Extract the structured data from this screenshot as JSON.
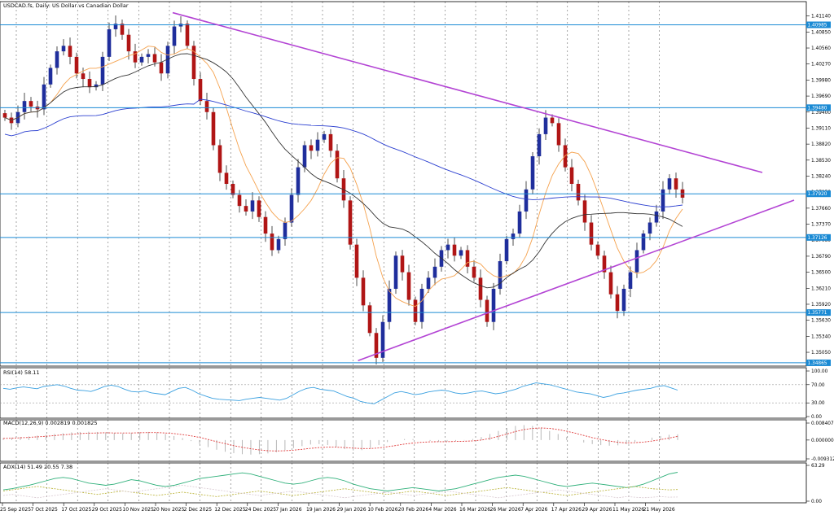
{
  "header": {
    "title": "USDCAD.fs, Daily:  US Dollar vs Canadian Dollar"
  },
  "colors": {
    "bull": "#1f2e9c",
    "bear": "#b01515",
    "ma_fast": "#f5a24e",
    "ma_mid": "#333333",
    "ma_slow": "#2b3fd0",
    "trendline": "#b344d4",
    "hline": "#1a8ad4",
    "rsi": "#3aa0e0",
    "macd_hist": "#b8b8b8",
    "macd_signal": "#e03c3c",
    "adx": "#2fb07a",
    "di_plus": "#b8b030",
    "di_minus": "#d8c8d0"
  },
  "chart_data": [
    {
      "type": "candlestick",
      "title": "USDCAD.fs, Daily:  US Dollar vs Canadian Dollar",
      "ylim": [
        1.348,
        1.414
      ],
      "y_ticks": [
        "1.41140",
        "1.40850",
        "1.40560",
        "1.40270",
        "1.39980",
        "1.39690",
        "1.39400",
        "1.39110",
        "1.38820",
        "1.38530",
        "1.38240",
        "1.37950",
        "1.37660",
        "1.37370",
        "1.37080",
        "1.36790",
        "1.36500",
        "1.36210",
        "1.35920",
        "1.35630",
        "1.35340",
        "1.35050"
      ],
      "x_ticks": [
        "25 Sep 2025",
        "7 Oct 2025",
        "17 Oct 2025",
        "29 Oct 2025",
        "10 Nov 2025",
        "20 Nov 2025",
        "2 Dec 2025",
        "12 Dec 2025",
        "24 Dec 2025",
        "7 Jan 2026",
        "19 Jan 2026",
        "29 Jan 2026",
        "10 Feb 2026",
        "20 Feb 2026",
        "4 Mar 2026",
        "16 Mar 2026",
        "26 Mar 2026",
        "7 Apr 2026",
        "17 Apr 2026",
        "29 Apr 2026",
        "11 May 2026",
        "21 May 2026"
      ],
      "hlines": [
        {
          "value": 1.4098,
          "label": "1.40985"
        },
        {
          "value": 1.3948,
          "label": "1.39480"
        },
        {
          "value": 1.3792,
          "label": "1.37920"
        },
        {
          "value": 1.3713,
          "label": "1.37126"
        },
        {
          "value": 1.3577,
          "label": "1.35771"
        },
        {
          "value": 1.3486,
          "label": "1.34865"
        }
      ],
      "trendlines": [
        {
          "from": [
            "20 Nov 2025",
            1.412
          ],
          "to": [
            "21 May 2026",
            1.3875
          ]
        },
        {
          "from": [
            "29 Jan 2026",
            1.349
          ],
          "to": [
            "21 May 2026",
            1.3715
          ]
        }
      ],
      "moving_averages": [
        "fast",
        "mid",
        "slow"
      ],
      "closes": [
        1.393,
        1.392,
        1.394,
        1.396,
        1.395,
        1.3945,
        1.399,
        1.402,
        1.405,
        1.406,
        1.404,
        1.401,
        1.4,
        1.3985,
        1.399,
        1.404,
        1.409,
        1.41,
        1.408,
        1.405,
        1.403,
        1.404,
        1.4045,
        1.403,
        1.401,
        1.406,
        1.4095,
        1.41,
        1.406,
        1.4,
        1.396,
        1.394,
        1.388,
        1.383,
        1.381,
        1.379,
        1.377,
        1.376,
        1.378,
        1.375,
        1.372,
        1.369,
        1.371,
        1.374,
        1.379,
        1.384,
        1.388,
        1.387,
        1.389,
        1.39,
        1.387,
        1.382,
        1.378,
        1.37,
        1.364,
        1.359,
        1.354,
        1.3495,
        1.356,
        1.362,
        1.368,
        1.365,
        1.36,
        1.356,
        1.362,
        1.364,
        1.366,
        1.369,
        1.37,
        1.368,
        1.369,
        1.366,
        1.364,
        1.36,
        1.356,
        1.362,
        1.367,
        1.371,
        1.372,
        1.376,
        1.38,
        1.386,
        1.39,
        1.393,
        1.392,
        1.388,
        1.384,
        1.381,
        1.378,
        1.374,
        1.37,
        1.368,
        1.365,
        1.361,
        1.358,
        1.362,
        1.365,
        1.369,
        1.372,
        1.374,
        1.376,
        1.38,
        1.382,
        1.38,
        1.3785
      ]
    },
    {
      "type": "line",
      "title": "RSI(14) 58.11",
      "ylim": [
        0,
        100
      ],
      "y_ticks": [
        "100.00",
        "70.00",
        "30.00",
        "0.00"
      ],
      "levels": [
        70,
        30
      ],
      "series": [
        {
          "values": [
            62,
            60,
            63,
            65,
            63,
            61,
            66,
            68,
            70,
            67,
            62,
            58,
            57,
            55,
            60,
            66,
            69,
            66,
            60,
            55,
            54,
            56,
            52,
            50,
            48,
            55,
            62,
            64,
            58,
            50,
            45,
            40,
            38,
            37,
            36,
            35,
            38,
            40,
            42,
            40,
            38,
            36,
            40,
            48,
            56,
            62,
            64,
            60,
            58,
            56,
            50,
            44,
            40,
            33,
            30,
            28,
            36,
            44,
            52,
            55,
            52,
            48,
            50,
            54,
            56,
            58,
            56,
            52,
            50,
            52,
            55,
            56,
            53,
            50,
            52,
            56,
            60,
            66,
            70,
            74,
            72,
            70,
            66,
            62,
            58,
            54,
            52,
            50,
            46,
            42,
            45,
            50,
            52,
            55,
            58,
            60,
            62,
            66,
            68,
            63,
            58
          ]
        }
      ]
    },
    {
      "type": "bar",
      "title": "MACD(12,26,9) 0.002819 0.001825",
      "ylim": [
        -0.009312,
        0.008407
      ],
      "y_ticks": [
        "0.008407",
        "0.000000",
        "-0.009312"
      ],
      "series": [
        {
          "name": "macd",
          "values": [
            0.001,
            0.0012,
            0.0015,
            0.0018,
            0.0022,
            0.0026,
            0.003,
            0.0034,
            0.0038,
            0.004,
            0.0041,
            0.004,
            0.0038,
            0.0035,
            0.0033,
            0.0035,
            0.0038,
            0.004,
            0.0037,
            0.003,
            0.002,
            0.001,
            -0.0005,
            -0.002,
            -0.0035,
            -0.0048,
            -0.0058,
            -0.0065,
            -0.007,
            -0.0072,
            -0.007,
            -0.0066,
            -0.006,
            -0.005,
            -0.004,
            -0.003,
            -0.0022,
            -0.002,
            -0.0025,
            -0.0035,
            -0.0045,
            -0.0052,
            -0.005,
            -0.004,
            -0.0025,
            -0.001,
            0.0,
            0.0005,
            0.0005,
            0.0,
            -0.0005,
            -0.0008,
            -0.0008,
            -0.0005,
            -0.0002,
            0.0005,
            0.0015,
            0.003,
            0.0045,
            0.006,
            0.007,
            0.0074,
            0.007,
            0.006,
            0.0045,
            0.003,
            0.0015,
            0.0,
            -0.0012,
            -0.002,
            -0.0025,
            -0.0028,
            -0.0026,
            -0.002,
            -0.001,
            0.0,
            0.0012,
            0.002,
            0.0026,
            0.0028
          ]
        },
        {
          "name": "signal",
          "values": [
            0.0008,
            0.0009,
            0.0011,
            0.0013,
            0.0016,
            0.0019,
            0.0022,
            0.0026,
            0.0029,
            0.0032,
            0.0034,
            0.0035,
            0.0036,
            0.0035,
            0.0035,
            0.0035,
            0.0036,
            0.0037,
            0.0037,
            0.0035,
            0.0032,
            0.0027,
            0.0021,
            0.0013,
            0.0003,
            -0.0008,
            -0.0018,
            -0.0028,
            -0.0036,
            -0.0043,
            -0.0049,
            -0.0053,
            -0.0054,
            -0.0053,
            -0.005,
            -0.0046,
            -0.0041,
            -0.0037,
            -0.0035,
            -0.0035,
            -0.0037,
            -0.004,
            -0.0042,
            -0.0042,
            -0.0039,
            -0.0033,
            -0.0027,
            -0.002,
            -0.0015,
            -0.0011,
            -0.0009,
            -0.0008,
            -0.0008,
            -0.0007,
            -0.0006,
            -0.0004,
            0.0,
            0.0008,
            0.0018,
            0.003,
            0.0042,
            0.0052,
            0.0058,
            0.006,
            0.0058,
            0.0052,
            0.0044,
            0.0034,
            0.0023,
            0.0012,
            0.0003,
            -0.0005,
            -0.0011,
            -0.0014,
            -0.0013,
            -0.001,
            -0.0005,
            0.0002,
            0.001,
            0.0018
          ]
        }
      ]
    },
    {
      "type": "line",
      "title": "ADX(14) 51.49 20.55 7.38",
      "ylim": [
        0,
        63.29
      ],
      "y_ticks": [
        "63.29",
        "0.00"
      ],
      "series": [
        {
          "name": "ADX",
          "values": [
            20,
            22,
            25,
            28,
            32,
            36,
            40,
            42,
            40,
            36,
            32,
            30,
            28,
            30,
            34,
            38,
            36,
            32,
            28,
            26,
            28,
            32,
            36,
            40,
            42,
            44,
            46,
            48,
            50,
            48,
            44,
            40,
            36,
            32,
            30,
            32,
            36,
            40,
            42,
            40,
            36,
            30,
            26,
            22,
            20,
            18,
            20,
            22,
            24,
            22,
            20,
            18,
            20,
            22,
            26,
            30,
            34,
            38,
            42,
            44,
            46,
            44,
            40,
            36,
            32,
            28,
            26,
            28,
            30,
            32,
            30,
            28,
            26,
            24,
            26,
            30,
            36,
            42,
            48,
            51
          ]
        },
        {
          "name": "+DI",
          "values": [
            18,
            20,
            22,
            24,
            26,
            24,
            22,
            20,
            18,
            16,
            14,
            12,
            14,
            16,
            18,
            16,
            14,
            12,
            10,
            12,
            14,
            16,
            14,
            12,
            10,
            8,
            10,
            12,
            14,
            16,
            18,
            16,
            14,
            12,
            10,
            12,
            14,
            16,
            18,
            20,
            22,
            20,
            18,
            16,
            14,
            12,
            14,
            16,
            18,
            16,
            14,
            12,
            10,
            12,
            14,
            16,
            18,
            20,
            22,
            24,
            22,
            20,
            18,
            16,
            14,
            12,
            10,
            12,
            14,
            16,
            18,
            20,
            22,
            24,
            26,
            24,
            22,
            21,
            20,
            20.5
          ]
        },
        {
          "name": "-DI",
          "values": [
            10,
            12,
            10,
            8,
            6,
            8,
            10,
            12,
            14,
            16,
            18,
            20,
            22,
            20,
            18,
            16,
            18,
            20,
            22,
            24,
            26,
            28,
            26,
            24,
            22,
            20,
            18,
            16,
            14,
            12,
            10,
            12,
            14,
            16,
            18,
            16,
            14,
            12,
            10,
            8,
            6,
            8,
            10,
            12,
            14,
            16,
            14,
            12,
            10,
            12,
            14,
            16,
            18,
            16,
            14,
            12,
            10,
            8,
            6,
            8,
            10,
            12,
            14,
            16,
            18,
            20,
            18,
            16,
            14,
            12,
            10,
            8,
            6,
            8,
            7,
            6,
            7,
            8,
            7,
            7.4
          ]
        }
      ]
    }
  ]
}
